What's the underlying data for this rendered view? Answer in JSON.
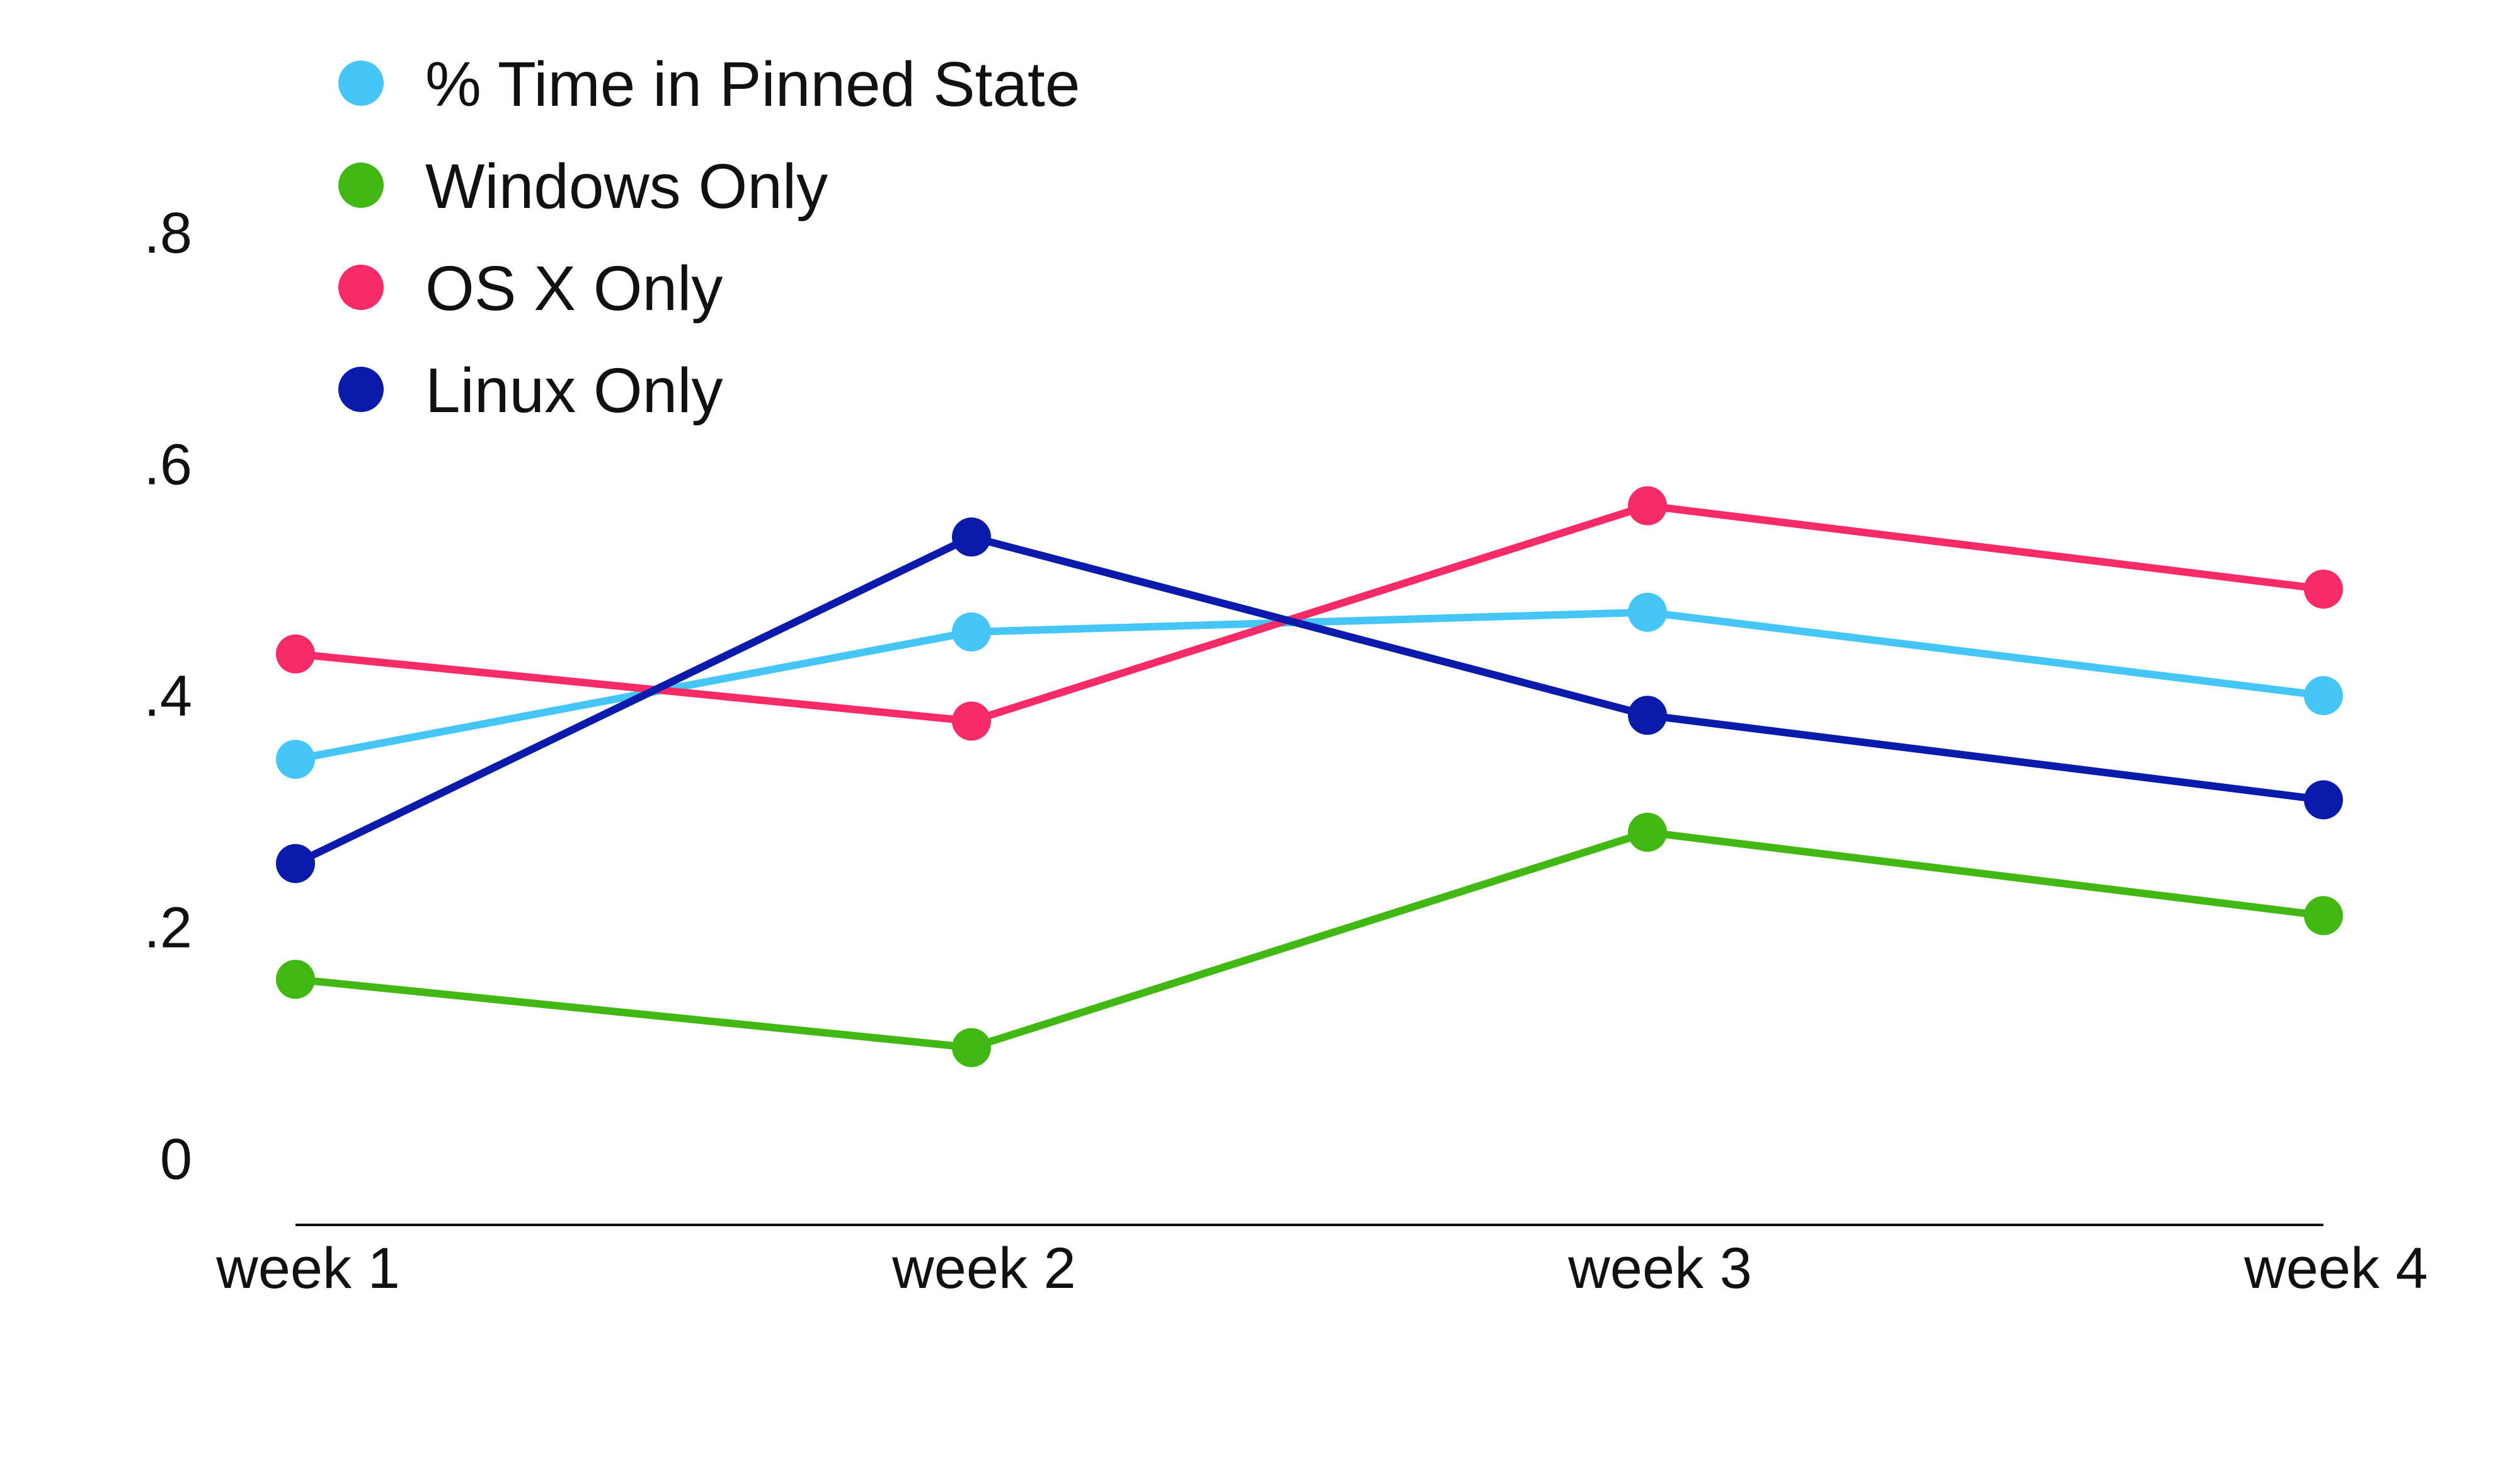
{
  "chart_data": {
    "type": "line",
    "title": "",
    "xlabel": "",
    "ylabel": "",
    "categories": [
      "week 1",
      "week 2",
      "week 3",
      "week 4"
    ],
    "y_ticks": [
      0,
      0.2,
      0.4,
      0.6,
      0.8
    ],
    "y_tick_labels": [
      "0",
      ".2",
      ".4",
      ".6",
      ".8"
    ],
    "ylim": [
      0,
      0.8
    ],
    "grid": false,
    "legend_position": "top-left",
    "series": [
      {
        "name": "% Time in Pinned State",
        "color": "#45c6f7",
        "values": [
          0.345,
          0.455,
          0.472,
          0.4
        ]
      },
      {
        "name": "Windows Only",
        "color": "#42b814",
        "values": [
          0.155,
          0.096,
          0.282,
          0.21
        ]
      },
      {
        "name": "OS X Only",
        "color": "#f72b68",
        "values": [
          0.436,
          0.378,
          0.564,
          0.492
        ]
      },
      {
        "name": "Linux Only",
        "color": "#0a1aab",
        "values": [
          0.255,
          0.537,
          0.383,
          0.31
        ]
      }
    ]
  }
}
